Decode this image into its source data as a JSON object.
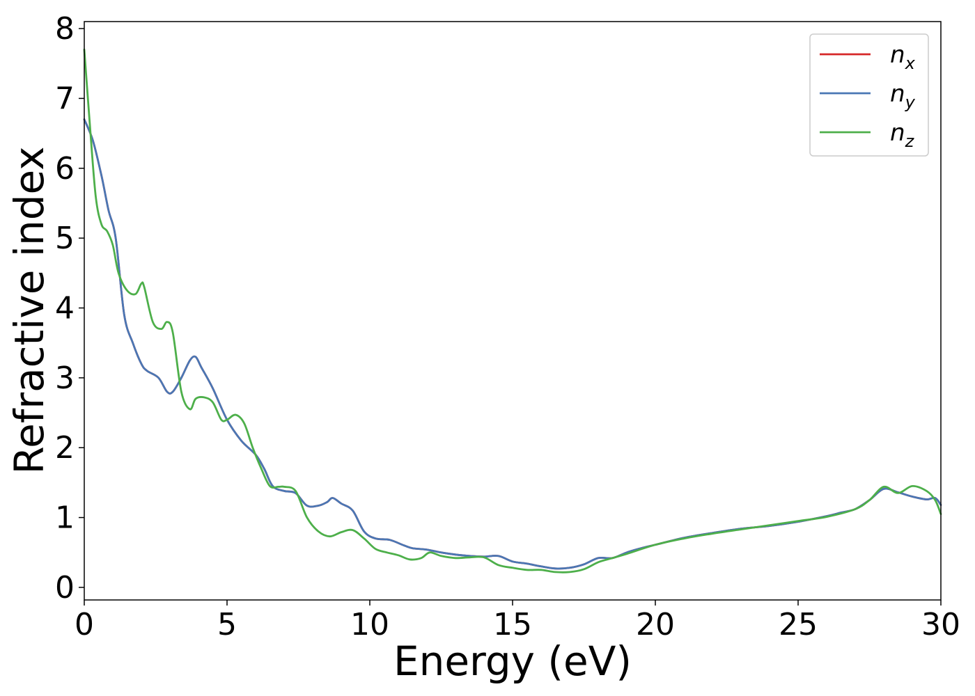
{
  "chart_data": {
    "type": "line",
    "title": "",
    "xlabel": "Energy (eV)",
    "ylabel": "Refractive index",
    "xlim": [
      0,
      30
    ],
    "ylim": [
      -0.18,
      8.1
    ],
    "xticks": [
      0,
      5,
      10,
      15,
      20,
      25,
      30
    ],
    "yticks": [
      0,
      1,
      2,
      3,
      4,
      5,
      6,
      7,
      8
    ],
    "grid": false,
    "legend_position": "top-right",
    "series": [
      {
        "name": "n_x",
        "legend_base": "n",
        "legend_sub": "x",
        "color": "#d62728",
        "x": [
          0,
          0.3,
          0.6,
          0.85,
          1.1,
          1.4,
          1.7,
          2.0,
          2.2,
          2.6,
          2.9,
          3.1,
          3.4,
          3.7,
          3.9,
          4.1,
          4.5,
          5.0,
          5.5,
          6.0,
          6.3,
          6.6,
          7.0,
          7.4,
          7.8,
          8.2,
          8.5,
          8.7,
          9.0,
          9.4,
          9.8,
          10.2,
          10.7,
          11.2,
          11.5,
          12.0,
          12.5,
          13.0,
          13.5,
          14.0,
          14.5,
          15.0,
          15.5,
          16.0,
          16.5,
          17.0,
          17.5,
          18.0,
          18.5,
          19.0,
          19.5,
          20.0,
          21.0,
          22.0,
          23.0,
          24.0,
          25.0,
          26.0,
          26.5,
          27.0,
          27.5,
          28.0,
          28.5,
          29.0,
          29.5,
          29.8,
          30.0
        ],
        "y": [
          6.7,
          6.4,
          5.9,
          5.4,
          5.0,
          3.9,
          3.5,
          3.2,
          3.1,
          3.0,
          2.8,
          2.8,
          3.0,
          3.25,
          3.3,
          3.15,
          2.85,
          2.4,
          2.1,
          1.9,
          1.7,
          1.45,
          1.38,
          1.35,
          1.17,
          1.17,
          1.22,
          1.28,
          1.2,
          1.1,
          0.8,
          0.7,
          0.68,
          0.6,
          0.56,
          0.54,
          0.5,
          0.47,
          0.45,
          0.44,
          0.45,
          0.37,
          0.34,
          0.3,
          0.27,
          0.28,
          0.33,
          0.42,
          0.42,
          0.5,
          0.56,
          0.61,
          0.71,
          0.78,
          0.84,
          0.88,
          0.94,
          1.02,
          1.07,
          1.12,
          1.25,
          1.41,
          1.36,
          1.3,
          1.26,
          1.28,
          1.18
        ]
      },
      {
        "name": "n_y",
        "legend_base": "n",
        "legend_sub": "y",
        "color": "#4a77b4",
        "x": [
          0,
          0.3,
          0.6,
          0.85,
          1.1,
          1.4,
          1.7,
          2.0,
          2.2,
          2.6,
          2.9,
          3.1,
          3.4,
          3.7,
          3.9,
          4.1,
          4.5,
          5.0,
          5.5,
          6.0,
          6.3,
          6.6,
          7.0,
          7.4,
          7.8,
          8.2,
          8.5,
          8.7,
          9.0,
          9.4,
          9.8,
          10.2,
          10.7,
          11.2,
          11.5,
          12.0,
          12.5,
          13.0,
          13.5,
          14.0,
          14.5,
          15.0,
          15.5,
          16.0,
          16.5,
          17.0,
          17.5,
          18.0,
          18.5,
          19.0,
          19.5,
          20.0,
          21.0,
          22.0,
          23.0,
          24.0,
          25.0,
          26.0,
          26.5,
          27.0,
          27.5,
          28.0,
          28.5,
          29.0,
          29.5,
          29.8,
          30.0
        ],
        "y": [
          6.7,
          6.4,
          5.9,
          5.4,
          5.0,
          3.9,
          3.5,
          3.2,
          3.1,
          3.0,
          2.8,
          2.8,
          3.0,
          3.25,
          3.3,
          3.15,
          2.85,
          2.4,
          2.1,
          1.9,
          1.7,
          1.45,
          1.38,
          1.35,
          1.17,
          1.17,
          1.22,
          1.28,
          1.2,
          1.1,
          0.8,
          0.7,
          0.68,
          0.6,
          0.56,
          0.54,
          0.5,
          0.47,
          0.45,
          0.44,
          0.45,
          0.37,
          0.34,
          0.3,
          0.27,
          0.28,
          0.33,
          0.42,
          0.42,
          0.5,
          0.56,
          0.61,
          0.71,
          0.78,
          0.84,
          0.88,
          0.94,
          1.02,
          1.07,
          1.12,
          1.25,
          1.41,
          1.36,
          1.3,
          1.26,
          1.28,
          1.18
        ]
      },
      {
        "name": "n_z",
        "legend_base": "n",
        "legend_sub": "z",
        "color": "#4daf4a",
        "x": [
          0,
          0.2,
          0.4,
          0.6,
          0.8,
          1.0,
          1.2,
          1.5,
          1.8,
          2.0,
          2.1,
          2.4,
          2.7,
          2.9,
          3.1,
          3.4,
          3.7,
          3.9,
          4.2,
          4.5,
          4.8,
          5.0,
          5.3,
          5.6,
          5.9,
          6.2,
          6.5,
          6.8,
          7.0,
          7.4,
          7.8,
          8.2,
          8.6,
          9.0,
          9.4,
          9.8,
          10.2,
          10.6,
          11.0,
          11.4,
          11.8,
          12.1,
          12.5,
          13.0,
          13.5,
          14.0,
          14.5,
          15.0,
          15.5,
          16.0,
          16.5,
          17.0,
          17.5,
          18.0,
          18.5,
          19.0,
          20.0,
          21.0,
          22.0,
          23.0,
          24.0,
          25.0,
          26.0,
          27.0,
          27.5,
          28.0,
          28.5,
          29.0,
          29.5,
          29.8,
          30.0
        ],
        "y": [
          7.7,
          6.6,
          5.6,
          5.2,
          5.1,
          4.9,
          4.5,
          4.25,
          4.2,
          4.35,
          4.3,
          3.8,
          3.7,
          3.8,
          3.65,
          2.8,
          2.55,
          2.7,
          2.72,
          2.65,
          2.4,
          2.4,
          2.47,
          2.35,
          2.0,
          1.7,
          1.45,
          1.44,
          1.44,
          1.38,
          1.0,
          0.8,
          0.73,
          0.79,
          0.82,
          0.7,
          0.55,
          0.5,
          0.46,
          0.4,
          0.42,
          0.5,
          0.45,
          0.42,
          0.43,
          0.43,
          0.32,
          0.28,
          0.25,
          0.25,
          0.22,
          0.22,
          0.26,
          0.36,
          0.42,
          0.48,
          0.61,
          0.7,
          0.77,
          0.83,
          0.89,
          0.95,
          1.01,
          1.12,
          1.25,
          1.44,
          1.35,
          1.45,
          1.38,
          1.25,
          1.05
        ]
      }
    ]
  }
}
